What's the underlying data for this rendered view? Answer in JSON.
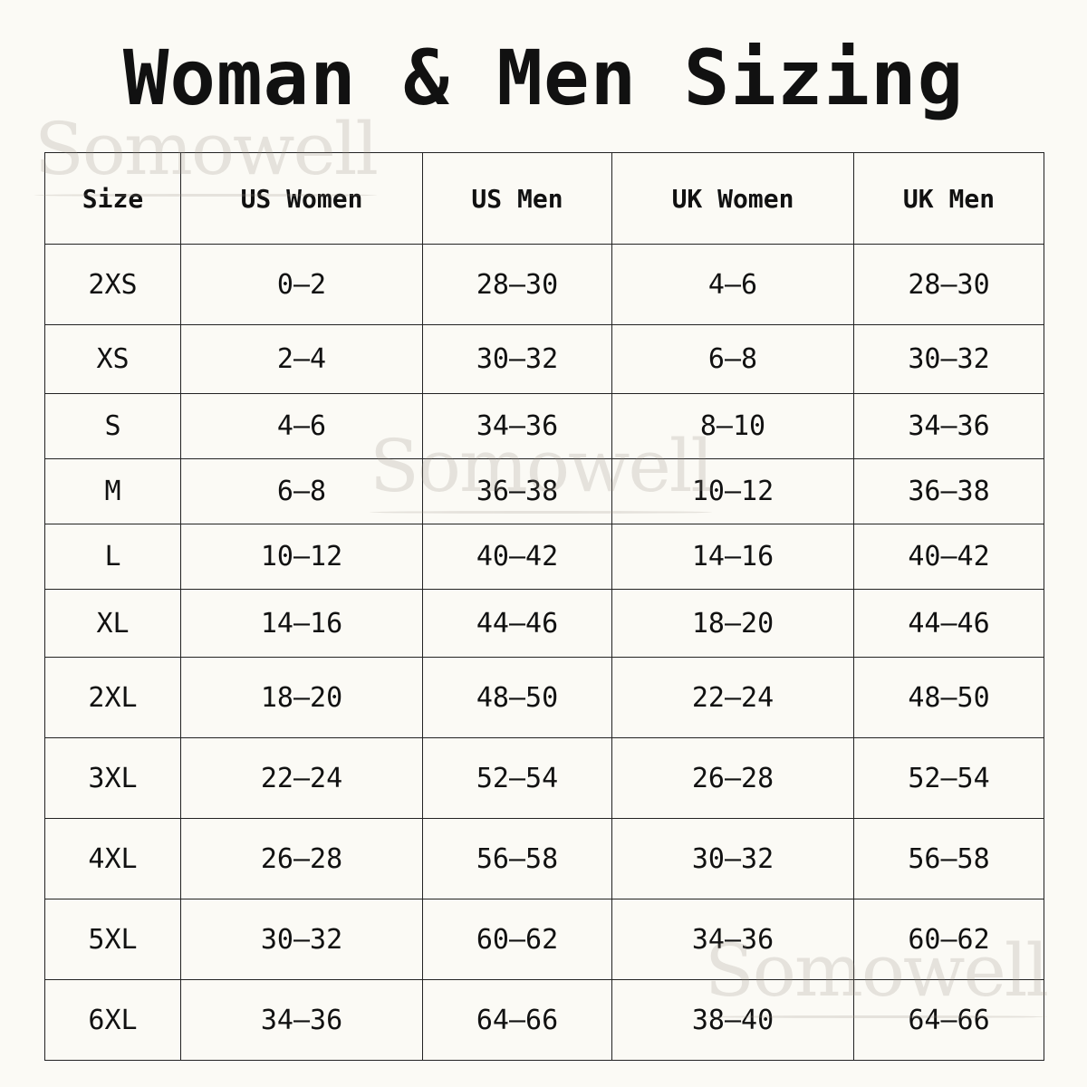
{
  "title": "Woman & Men Sizing",
  "watermark": "Somowell",
  "table": {
    "headers": [
      "Size",
      "US Women",
      "US Men",
      "UK Women",
      "UK Men"
    ],
    "rows": [
      [
        "2XS",
        "0–2",
        "28–30",
        "4–6",
        "28–30"
      ],
      [
        "XS",
        "2–4",
        "30–32",
        "6–8",
        "30–32"
      ],
      [
        "S",
        "4–6",
        "34–36",
        "8–10",
        "34–36"
      ],
      [
        "M",
        "6–8",
        "36–38",
        "10–12",
        "36–38"
      ],
      [
        "L",
        "10–12",
        "40–42",
        "14–16",
        "40–42"
      ],
      [
        "XL",
        "14–16",
        "44–46",
        "18–20",
        "44–46"
      ],
      [
        "2XL",
        "18–20",
        "48–50",
        "22–24",
        "48–50"
      ],
      [
        "3XL",
        "22–24",
        "52–54",
        "26–28",
        "52–54"
      ],
      [
        "4XL",
        "26–28",
        "56–58",
        "30–32",
        "56–58"
      ],
      [
        "5XL",
        "30–32",
        "60–62",
        "34–36",
        "60–62"
      ],
      [
        "6XL",
        "34–36",
        "64–66",
        "38–40",
        "64–66"
      ]
    ]
  }
}
